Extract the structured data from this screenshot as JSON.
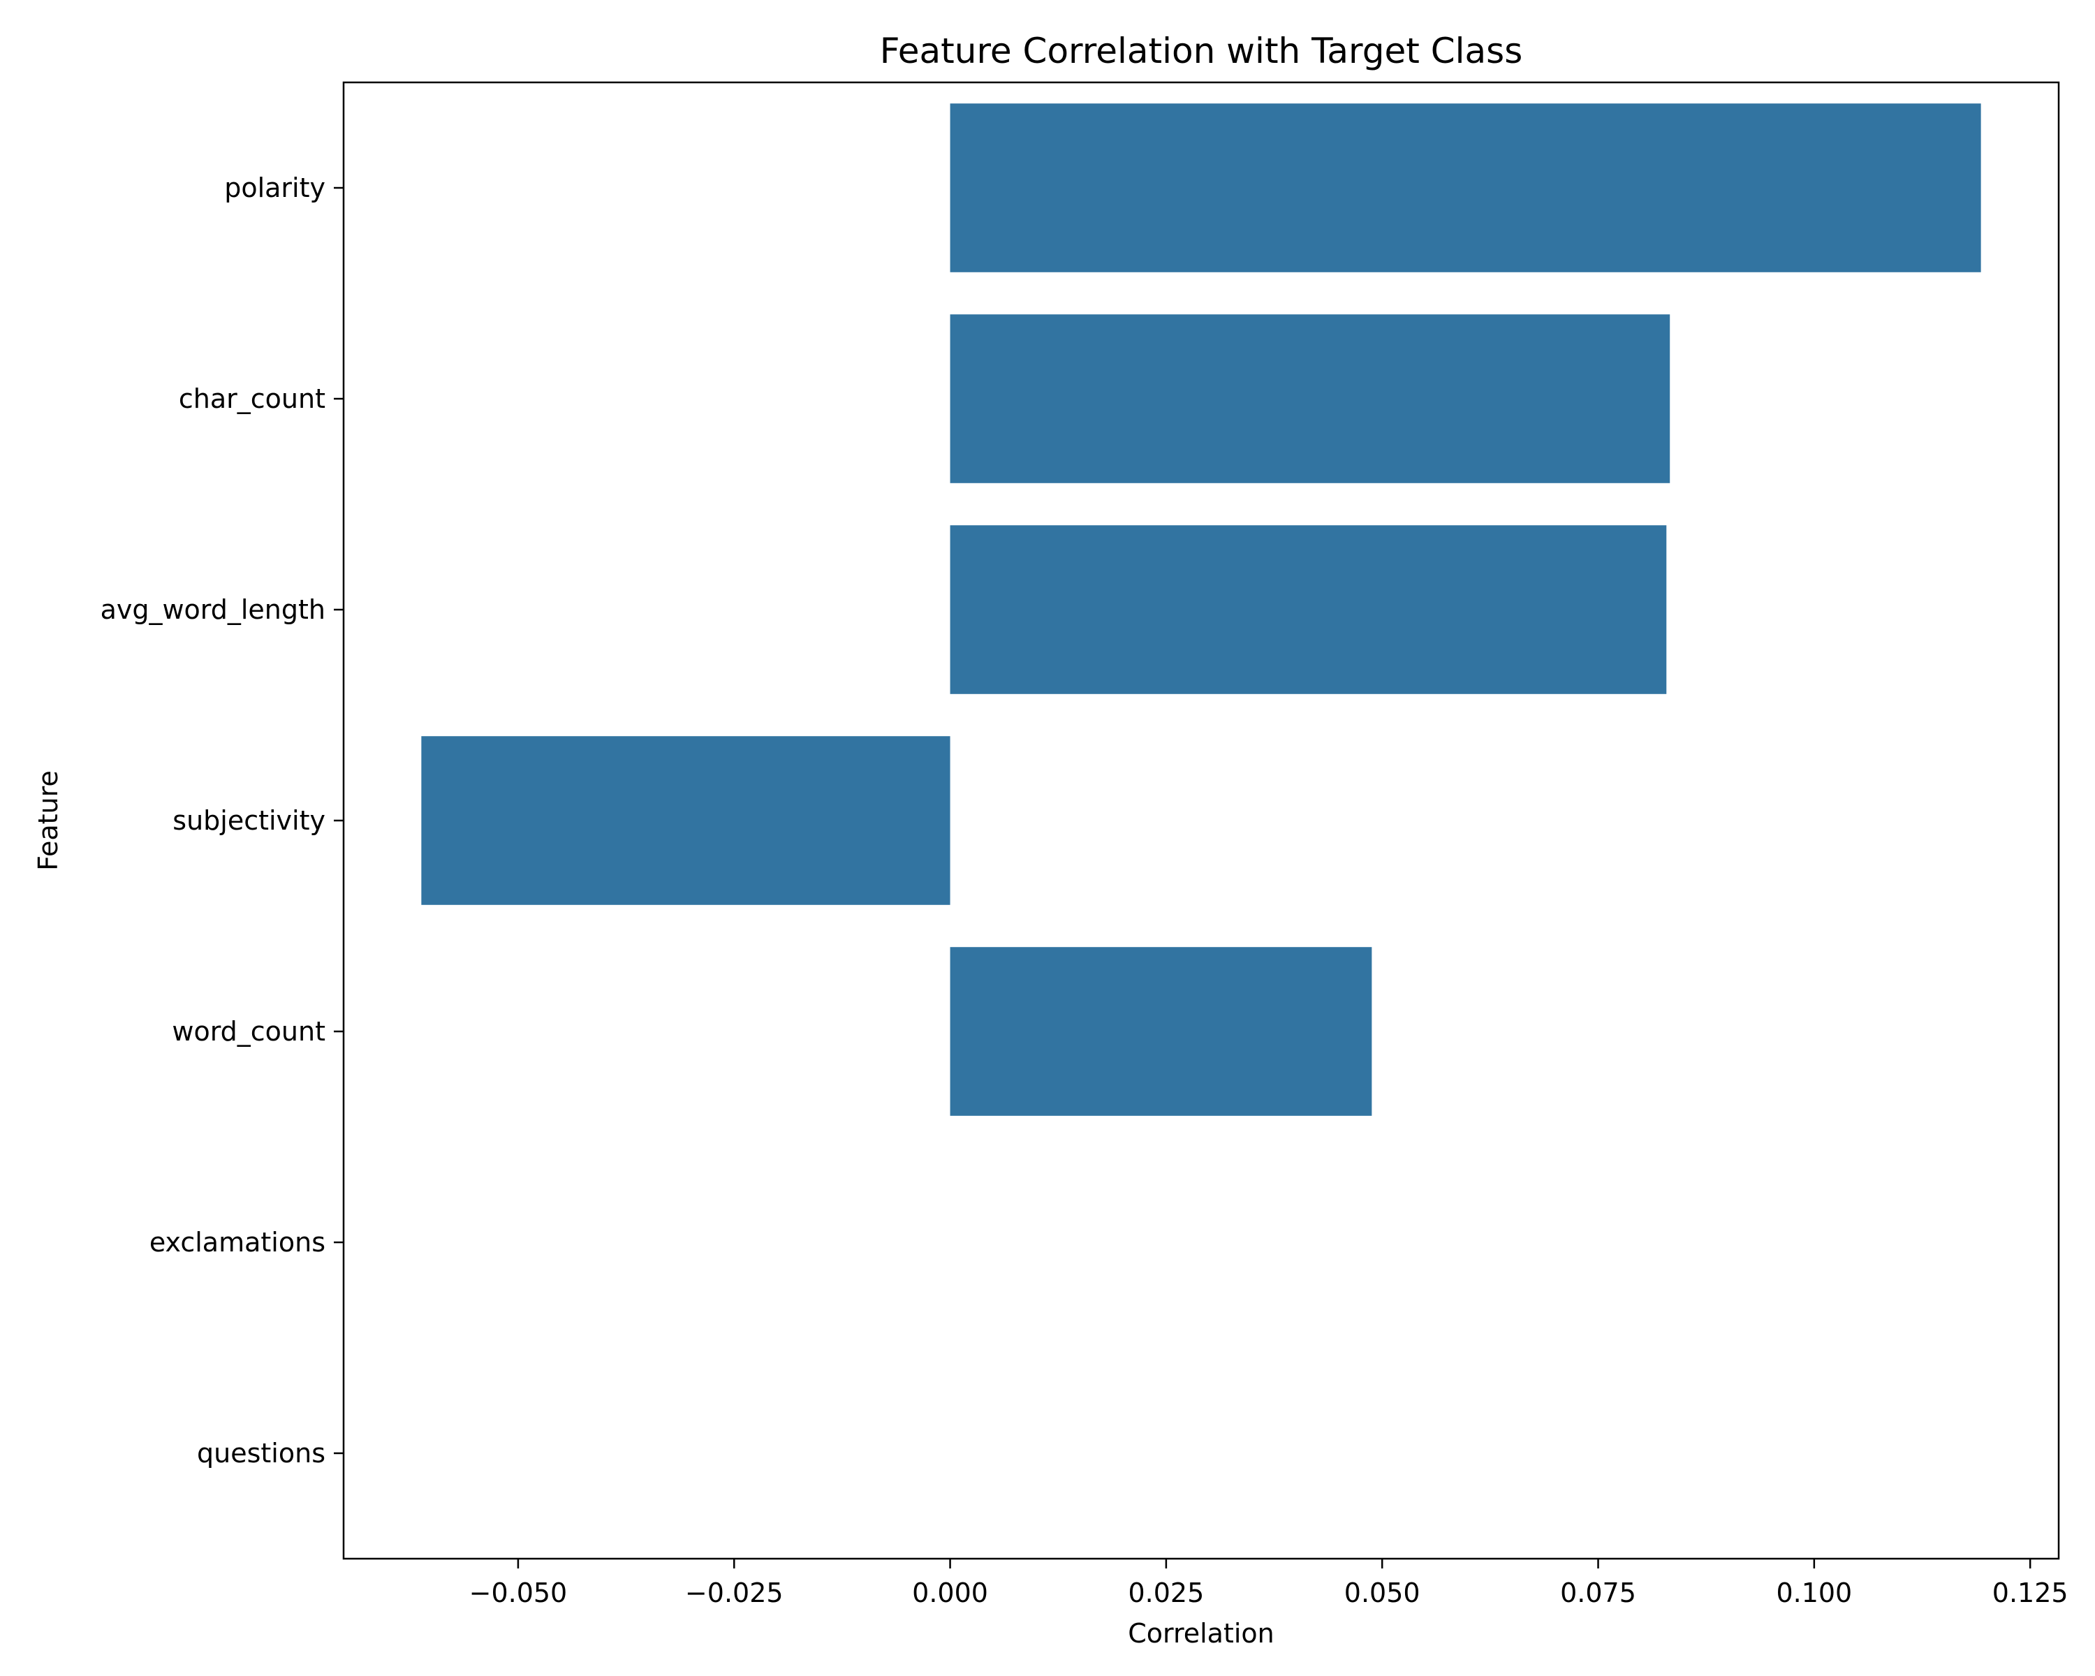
{
  "chart_data": {
    "type": "bar",
    "orientation": "horizontal",
    "title": "Feature Correlation with Target Class",
    "xlabel": "Correlation",
    "ylabel": "Feature",
    "categories": [
      "polarity",
      "char_count",
      "avg_word_length",
      "subjectivity",
      "word_count",
      "exclamations",
      "questions"
    ],
    "values": [
      0.1193,
      0.0833,
      0.0829,
      -0.0612,
      0.0488,
      0.0,
      0.0
    ],
    "xlim": [
      -0.0702,
      0.1283
    ],
    "xticks": [
      -0.05,
      -0.025,
      0.0,
      0.025,
      0.05,
      0.075,
      0.1,
      0.125
    ],
    "xtick_labels": [
      "−0.050",
      "−0.025",
      "0.000",
      "0.025",
      "0.050",
      "0.075",
      "0.100",
      "0.125"
    ],
    "bar_color": "#3274a1",
    "grid": false,
    "legend": "none"
  }
}
